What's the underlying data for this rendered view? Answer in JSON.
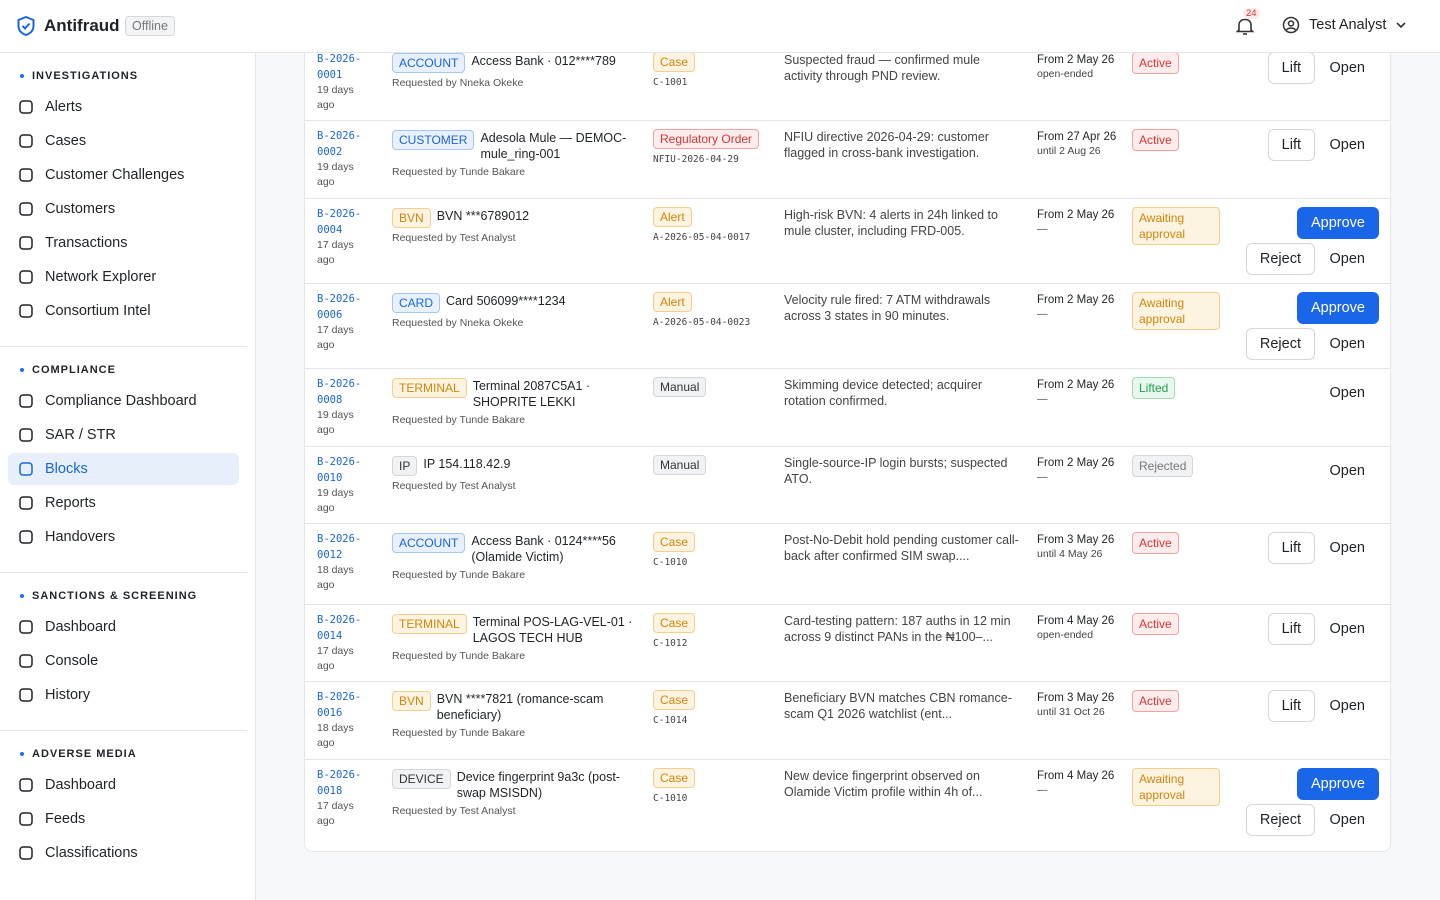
{
  "header": {
    "brand": "Antifraud",
    "status": "Offline",
    "notification_count": "24",
    "user": "Test Analyst"
  },
  "sidebar": {
    "active": "Blocks",
    "sections": [
      {
        "title": "INVESTIGATIONS",
        "items": [
          "Alerts",
          "Cases",
          "Customer Challenges",
          "Customers",
          "Transactions",
          "Network Explorer",
          "Consortium Intel"
        ]
      },
      {
        "title": "COMPLIANCE",
        "items": [
          "Compliance Dashboard",
          "SAR / STR",
          "Blocks",
          "Reports",
          "Handovers"
        ]
      },
      {
        "title": "SANCTIONS & SCREENING",
        "items": [
          "Dashboard",
          "Console",
          "History"
        ]
      },
      {
        "title": "ADVERSE MEDIA",
        "items": [
          "Dashboard",
          "Feeds",
          "Classifications"
        ]
      }
    ]
  },
  "table": {
    "rows": [
      {
        "id": "B-2026-0001",
        "age": "19 days ago",
        "target_type": "ACCOUNT",
        "target": "Access Bank · 012****789",
        "requested_by": "Requested by Nneka Okeke",
        "source": "Case",
        "source_ref": "C-1001",
        "reason": "Suspected fraud — confirmed mule activity through PND review.",
        "from": "From 2 May 26",
        "until": "open-ended",
        "status": "Active",
        "actions": [
          "Lift",
          "Open"
        ]
      },
      {
        "id": "B-2026-0002",
        "age": "19 days ago",
        "target_type": "CUSTOMER",
        "target": "Adesola Mule — DEMOC-mule_ring-001",
        "requested_by": "Requested by Tunde Bakare",
        "source": "Regulatory Order",
        "source_ref": "NFIU-2026-04-29",
        "reason": "NFIU directive 2026-04-29: customer flagged in cross-bank investigation.",
        "from": "From 27 Apr 26",
        "until": "until 2 Aug 26",
        "status": "Active",
        "actions": [
          "Lift",
          "Open"
        ]
      },
      {
        "id": "B-2026-0004",
        "age": "17 days ago",
        "target_type": "BVN",
        "target": "BVN ***6789012",
        "requested_by": "Requested by Test Analyst",
        "source": "Alert",
        "source_ref": "A-2026-05-04-0017",
        "reason": "High-risk BVN: 4 alerts in 24h linked to mule cluster, including FRD-005.",
        "from": "From 2 May 26",
        "until": "—",
        "status": "Awaiting approval",
        "actions": [
          "Approve",
          "Reject",
          "Open"
        ]
      },
      {
        "id": "B-2026-0006",
        "age": "17 days ago",
        "target_type": "CARD",
        "target": "Card 506099****1234",
        "requested_by": "Requested by Nneka Okeke",
        "source": "Alert",
        "source_ref": "A-2026-05-04-0023",
        "reason": "Velocity rule fired: 7 ATM withdrawals across 3 states in 90 minutes.",
        "from": "From 2 May 26",
        "until": "—",
        "status": "Awaiting approval",
        "actions": [
          "Approve",
          "Reject",
          "Open"
        ]
      },
      {
        "id": "B-2026-0008",
        "age": "19 days ago",
        "target_type": "TERMINAL",
        "target": "Terminal 2087C5A1 · SHOPRITE LEKKI",
        "requested_by": "Requested by Tunde Bakare",
        "source": "Manual",
        "reason": "Skimming device detected; acquirer rotation confirmed.",
        "from": "From 2 May 26",
        "until": "—",
        "status": "Lifted",
        "actions": [
          "Open"
        ]
      },
      {
        "id": "B-2026-0010",
        "age": "19 days ago",
        "target_type": "IP",
        "target": "IP 154.118.42.9",
        "requested_by": "Requested by Test Analyst",
        "source": "Manual",
        "reason": "Single-source-IP login bursts; suspected ATO.",
        "from": "From 2 May 26",
        "until": "—",
        "status": "Rejected",
        "actions": [
          "Open"
        ]
      },
      {
        "id": "B-2026-0012",
        "age": "18 days ago",
        "target_type": "ACCOUNT",
        "target": "Access Bank · 0124****56 (Olamide Victim)",
        "requested_by": "Requested by Tunde Bakare",
        "source": "Case",
        "source_ref": "C-1010",
        "reason": "Post-No-Debit hold pending customer call-back after confirmed SIM swap....",
        "from": "From 3 May 26",
        "until": "until 4 May 26",
        "status": "Active",
        "actions": [
          "Lift",
          "Open"
        ]
      },
      {
        "id": "B-2026-0014",
        "age": "17 days ago",
        "target_type": "TERMINAL",
        "target": "Terminal POS-LAG-VEL-01 · LAGOS TECH HUB",
        "requested_by": "Requested by Tunde Bakare",
        "source": "Case",
        "source_ref": "C-1012",
        "reason": "Card-testing pattern: 187 auths in 12 min across 9 distinct PANs in the ₦100–...",
        "from": "From 4 May 26",
        "until": "open-ended",
        "status": "Active",
        "actions": [
          "Lift",
          "Open"
        ]
      },
      {
        "id": "B-2026-0016",
        "age": "18 days ago",
        "target_type": "BVN",
        "target": "BVN ****7821 (romance-scam beneficiary)",
        "requested_by": "Requested by Tunde Bakare",
        "source": "Case",
        "source_ref": "C-1014",
        "reason": "Beneficiary BVN matches CBN romance-scam Q1 2026 watchlist (ent...",
        "from": "From 3 May 26",
        "until": "until 31 Oct 26",
        "status": "Active",
        "actions": [
          "Lift",
          "Open"
        ]
      },
      {
        "id": "B-2026-0018",
        "age": "17 days ago",
        "target_type": "DEVICE",
        "target": "Device fingerprint 9a3c (post-swap MSISDN)",
        "requested_by": "Requested by Test Analyst",
        "source": "Case",
        "source_ref": "C-1010",
        "reason": "New device fingerprint observed on Olamide Victim profile within 4h of...",
        "from": "From 4 May 26",
        "until": "—",
        "status": "Awaiting approval",
        "actions": [
          "Approve",
          "Reject",
          "Open"
        ]
      }
    ]
  }
}
